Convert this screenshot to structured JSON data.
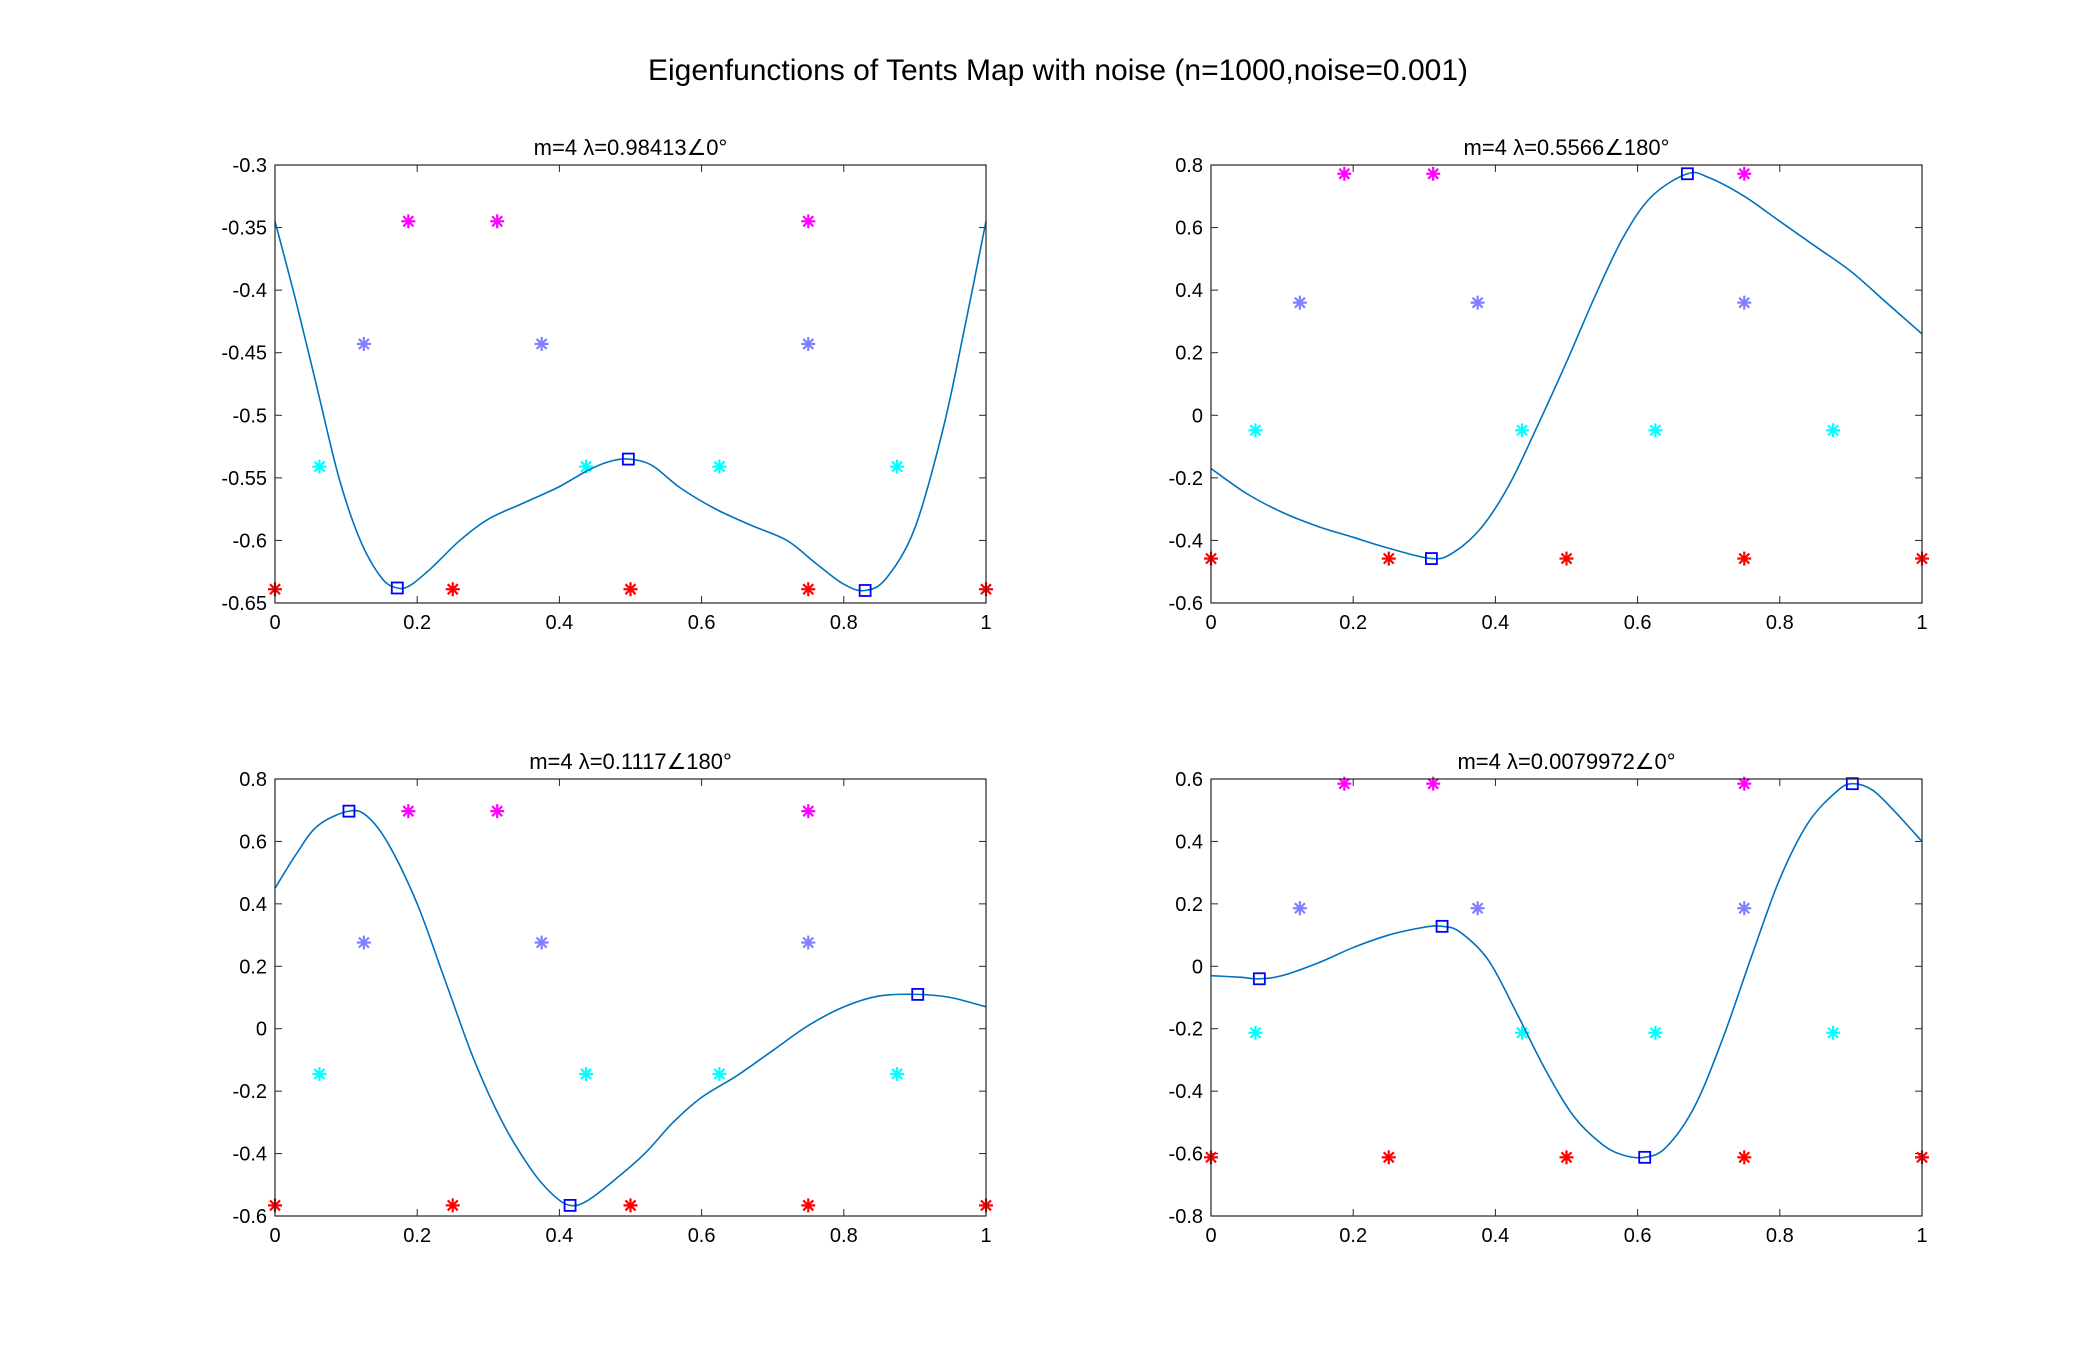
{
  "figure_title": "Eigenfunctions of Tents Map with noise (n=1000,noise=0.001)",
  "chart_data": [
    {
      "type": "line",
      "title": "m=4 λ=0.98413∠0°",
      "xlim": [
        0,
        1
      ],
      "ylim": [
        -0.65,
        -0.3
      ],
      "xticks": [
        0,
        0.2,
        0.4,
        0.6,
        0.8,
        1
      ],
      "xtick_labels": [
        "0",
        "0.2",
        "0.4",
        "0.6",
        "0.8",
        "1"
      ],
      "yticks": [
        -0.65,
        -0.6,
        -0.55,
        -0.5,
        -0.45,
        -0.4,
        -0.35,
        -0.3
      ],
      "ytick_labels": [
        "-0.65",
        "-0.6",
        "-0.55",
        "-0.5",
        "-0.45",
        "-0.4",
        "-0.35",
        "-0.3"
      ],
      "curve": {
        "color": "#0072BD",
        "points": [
          [
            0,
            -0.345
          ],
          [
            0.03,
            -0.41
          ],
          [
            0.06,
            -0.48
          ],
          [
            0.09,
            -0.55
          ],
          [
            0.12,
            -0.6
          ],
          [
            0.15,
            -0.63
          ],
          [
            0.172,
            -0.638
          ],
          [
            0.19,
            -0.636
          ],
          [
            0.22,
            -0.622
          ],
          [
            0.26,
            -0.6
          ],
          [
            0.3,
            -0.583
          ],
          [
            0.35,
            -0.57
          ],
          [
            0.4,
            -0.557
          ],
          [
            0.44,
            -0.544
          ],
          [
            0.47,
            -0.537
          ],
          [
            0.497,
            -0.535
          ],
          [
            0.53,
            -0.54
          ],
          [
            0.57,
            -0.558
          ],
          [
            0.62,
            -0.575
          ],
          [
            0.67,
            -0.588
          ],
          [
            0.72,
            -0.6
          ],
          [
            0.76,
            -0.618
          ],
          [
            0.8,
            -0.635
          ],
          [
            0.83,
            -0.64
          ],
          [
            0.86,
            -0.63
          ],
          [
            0.9,
            -0.59
          ],
          [
            0.94,
            -0.51
          ],
          [
            0.97,
            -0.43
          ],
          [
            1,
            -0.345
          ]
        ]
      },
      "extrema": {
        "color": "#0000ff",
        "points": [
          [
            0.172,
            -0.638
          ],
          [
            0.497,
            -0.535
          ],
          [
            0.83,
            -0.64
          ]
        ]
      },
      "star_series": [
        {
          "color": "#ff00ff",
          "points": [
            [
              0.1875,
              -0.345
            ],
            [
              0.3125,
              -0.345
            ],
            [
              0.75,
              -0.345
            ]
          ]
        },
        {
          "color": "#7f7fff",
          "points": [
            [
              0.125,
              -0.443
            ],
            [
              0.375,
              -0.443
            ],
            [
              0.75,
              -0.443
            ]
          ]
        },
        {
          "color": "#00ffff",
          "points": [
            [
              0.0625,
              -0.541
            ],
            [
              0.4375,
              -0.541
            ],
            [
              0.625,
              -0.541
            ],
            [
              0.875,
              -0.541
            ]
          ]
        },
        {
          "color": "#ff0000",
          "points": [
            [
              0,
              -0.639
            ],
            [
              0.25,
              -0.639
            ],
            [
              0.5,
              -0.639
            ],
            [
              0.75,
              -0.639
            ],
            [
              1,
              -0.639
            ]
          ]
        }
      ]
    },
    {
      "type": "line",
      "title": "m=4 λ=0.5566∠180°",
      "xlim": [
        0,
        1
      ],
      "ylim": [
        -0.6,
        0.8
      ],
      "xticks": [
        0,
        0.2,
        0.4,
        0.6,
        0.8,
        1
      ],
      "xtick_labels": [
        "0",
        "0.2",
        "0.4",
        "0.6",
        "0.8",
        "1"
      ],
      "yticks": [
        -0.6,
        -0.4,
        -0.2,
        0,
        0.2,
        0.4,
        0.6,
        0.8
      ],
      "ytick_labels": [
        "-0.6",
        "-0.4",
        "-0.2",
        "0",
        "0.2",
        "0.4",
        "0.6",
        "0.8"
      ],
      "curve": {
        "color": "#0072BD",
        "points": [
          [
            0,
            -0.17
          ],
          [
            0.05,
            -0.25
          ],
          [
            0.1,
            -0.31
          ],
          [
            0.15,
            -0.355
          ],
          [
            0.2,
            -0.39
          ],
          [
            0.25,
            -0.425
          ],
          [
            0.31,
            -0.458
          ],
          [
            0.34,
            -0.44
          ],
          [
            0.38,
            -0.36
          ],
          [
            0.42,
            -0.22
          ],
          [
            0.46,
            -0.03
          ],
          [
            0.5,
            0.17
          ],
          [
            0.54,
            0.38
          ],
          [
            0.58,
            0.57
          ],
          [
            0.62,
            0.7
          ],
          [
            0.67,
            0.772
          ],
          [
            0.7,
            0.76
          ],
          [
            0.75,
            0.7
          ],
          [
            0.8,
            0.62
          ],
          [
            0.85,
            0.54
          ],
          [
            0.9,
            0.46
          ],
          [
            0.95,
            0.36
          ],
          [
            1,
            0.26
          ]
        ]
      },
      "extrema": {
        "color": "#0000ff",
        "points": [
          [
            0.31,
            -0.458
          ],
          [
            0.67,
            0.772
          ]
        ]
      },
      "star_series": [
        {
          "color": "#ff00ff",
          "points": [
            [
              0.1875,
              0.772
            ],
            [
              0.3125,
              0.772
            ],
            [
              0.75,
              0.772
            ]
          ]
        },
        {
          "color": "#7f7fff",
          "points": [
            [
              0.125,
              0.36
            ],
            [
              0.375,
              0.36
            ],
            [
              0.75,
              0.36
            ]
          ]
        },
        {
          "color": "#00ffff",
          "points": [
            [
              0.0625,
              -0.048
            ],
            [
              0.4375,
              -0.048
            ],
            [
              0.625,
              -0.048
            ],
            [
              0.875,
              -0.048
            ]
          ]
        },
        {
          "color": "#ff0000",
          "points": [
            [
              0,
              -0.458
            ],
            [
              0.25,
              -0.458
            ],
            [
              0.5,
              -0.458
            ],
            [
              0.75,
              -0.458
            ],
            [
              1,
              -0.458
            ]
          ]
        }
      ]
    },
    {
      "type": "line",
      "title": "m=4 λ=0.1117∠180°",
      "xlim": [
        0,
        1
      ],
      "ylim": [
        -0.6,
        0.8
      ],
      "xticks": [
        0,
        0.2,
        0.4,
        0.6,
        0.8,
        1
      ],
      "xtick_labels": [
        "0",
        "0.2",
        "0.4",
        "0.6",
        "0.8",
        "1"
      ],
      "yticks": [
        -0.6,
        -0.4,
        -0.2,
        0,
        0.2,
        0.4,
        0.6,
        0.8
      ],
      "ytick_labels": [
        "-0.6",
        "-0.4",
        "-0.2",
        "0",
        "0.2",
        "0.4",
        "0.6",
        "0.8"
      ],
      "curve": {
        "color": "#0072BD",
        "points": [
          [
            0,
            0.45
          ],
          [
            0.03,
            0.56
          ],
          [
            0.06,
            0.65
          ],
          [
            0.104,
            0.697
          ],
          [
            0.13,
            0.68
          ],
          [
            0.16,
            0.59
          ],
          [
            0.2,
            0.4
          ],
          [
            0.24,
            0.15
          ],
          [
            0.28,
            -0.1
          ],
          [
            0.32,
            -0.3
          ],
          [
            0.36,
            -0.45
          ],
          [
            0.39,
            -0.53
          ],
          [
            0.415,
            -0.566
          ],
          [
            0.44,
            -0.55
          ],
          [
            0.48,
            -0.48
          ],
          [
            0.52,
            -0.4
          ],
          [
            0.56,
            -0.3
          ],
          [
            0.6,
            -0.22
          ],
          [
            0.65,
            -0.15
          ],
          [
            0.7,
            -0.07
          ],
          [
            0.75,
            0.01
          ],
          [
            0.8,
            0.07
          ],
          [
            0.85,
            0.105
          ],
          [
            0.904,
            0.11
          ],
          [
            0.95,
            0.1
          ],
          [
            1,
            0.07
          ]
        ]
      },
      "extrema": {
        "color": "#0000ff",
        "points": [
          [
            0.104,
            0.697
          ],
          [
            0.415,
            -0.566
          ],
          [
            0.904,
            0.11
          ]
        ]
      },
      "star_series": [
        {
          "color": "#ff00ff",
          "points": [
            [
              0.1875,
              0.697
            ],
            [
              0.3125,
              0.697
            ],
            [
              0.75,
              0.697
            ]
          ]
        },
        {
          "color": "#7f7fff",
          "points": [
            [
              0.125,
              0.276
            ],
            [
              0.375,
              0.276
            ],
            [
              0.75,
              0.276
            ]
          ]
        },
        {
          "color": "#00ffff",
          "points": [
            [
              0.0625,
              -0.145
            ],
            [
              0.4375,
              -0.145
            ],
            [
              0.625,
              -0.145
            ],
            [
              0.875,
              -0.145
            ]
          ]
        },
        {
          "color": "#ff0000",
          "points": [
            [
              0,
              -0.566
            ],
            [
              0.25,
              -0.566
            ],
            [
              0.5,
              -0.566
            ],
            [
              0.75,
              -0.566
            ],
            [
              1,
              -0.566
            ]
          ]
        }
      ]
    },
    {
      "type": "line",
      "title": "m=4 λ=0.0079972∠0°",
      "xlim": [
        0,
        1
      ],
      "ylim": [
        -0.8,
        0.6
      ],
      "xticks": [
        0,
        0.2,
        0.4,
        0.6,
        0.8,
        1
      ],
      "xtick_labels": [
        "0",
        "0.2",
        "0.4",
        "0.6",
        "0.8",
        "1"
      ],
      "yticks": [
        -0.8,
        -0.6,
        -0.4,
        -0.2,
        0,
        0.2,
        0.4,
        0.6
      ],
      "ytick_labels": [
        "-0.8",
        "-0.6",
        "-0.4",
        "-0.2",
        "0",
        "0.2",
        "0.4",
        "0.6"
      ],
      "curve": {
        "color": "#0072BD",
        "points": [
          [
            0,
            -0.03
          ],
          [
            0.04,
            -0.035
          ],
          [
            0.068,
            -0.04
          ],
          [
            0.1,
            -0.03
          ],
          [
            0.15,
            0.01
          ],
          [
            0.2,
            0.06
          ],
          [
            0.25,
            0.1
          ],
          [
            0.3,
            0.125
          ],
          [
            0.325,
            0.128
          ],
          [
            0.35,
            0.11
          ],
          [
            0.39,
            0.02
          ],
          [
            0.43,
            -0.15
          ],
          [
            0.47,
            -0.33
          ],
          [
            0.51,
            -0.48
          ],
          [
            0.55,
            -0.57
          ],
          [
            0.58,
            -0.605
          ],
          [
            0.61,
            -0.612
          ],
          [
            0.64,
            -0.58
          ],
          [
            0.68,
            -0.45
          ],
          [
            0.72,
            -0.23
          ],
          [
            0.76,
            0.03
          ],
          [
            0.8,
            0.28
          ],
          [
            0.84,
            0.46
          ],
          [
            0.88,
            0.56
          ],
          [
            0.902,
            0.585
          ],
          [
            0.93,
            0.565
          ],
          [
            0.96,
            0.5
          ],
          [
            1,
            0.4
          ]
        ]
      },
      "extrema": {
        "color": "#0000ff",
        "points": [
          [
            0.068,
            -0.04
          ],
          [
            0.325,
            0.128
          ],
          [
            0.61,
            -0.612
          ],
          [
            0.902,
            0.585
          ]
        ]
      },
      "star_series": [
        {
          "color": "#ff00ff",
          "points": [
            [
              0.1875,
              0.585
            ],
            [
              0.3125,
              0.585
            ],
            [
              0.75,
              0.585
            ]
          ]
        },
        {
          "color": "#7f7fff",
          "points": [
            [
              0.125,
              0.186
            ],
            [
              0.375,
              0.186
            ],
            [
              0.75,
              0.186
            ]
          ]
        },
        {
          "color": "#00ffff",
          "points": [
            [
              0.0625,
              -0.213
            ],
            [
              0.4375,
              -0.213
            ],
            [
              0.625,
              -0.213
            ],
            [
              0.875,
              -0.213
            ]
          ]
        },
        {
          "color": "#ff0000",
          "points": [
            [
              0,
              -0.612
            ],
            [
              0.25,
              -0.612
            ],
            [
              0.5,
              -0.612
            ],
            [
              0.75,
              -0.612
            ],
            [
              1,
              -0.612
            ]
          ]
        }
      ]
    }
  ]
}
